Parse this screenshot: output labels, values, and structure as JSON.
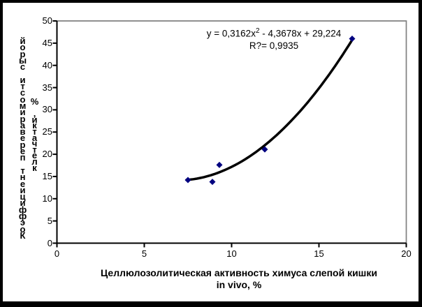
{
  "window": {
    "background": "#ffffff",
    "frame_color": "#000000"
  },
  "chart_data": {
    "type": "scatter",
    "title": "",
    "points": [
      {
        "x": 7.5,
        "y": 14.2
      },
      {
        "x": 8.9,
        "y": 13.8
      },
      {
        "x": 9.3,
        "y": 17.6
      },
      {
        "x": 11.9,
        "y": 21.1
      },
      {
        "x": 16.9,
        "y": 46.0
      }
    ],
    "trendline": {
      "kind": "polynomial",
      "degree": 2,
      "coeffs": {
        "a": 0.3162,
        "b": -4.3678,
        "c": 29.224
      },
      "x_start": 7.42,
      "x_end": 16.93,
      "color": "#000000",
      "width": 3.5
    },
    "equation": {
      "prefix": "y = 0,3162x",
      "superscript": "2",
      "suffix": " - 4,3678x + 29,224"
    },
    "r_squared": "R?= 0,9935",
    "x_axis": {
      "label_line1": "Целлюлозолитическая активность химуса слепой кишки",
      "label_line2": "in vivo, %",
      "min": 0,
      "max": 20,
      "ticks": [
        0,
        5,
        10,
        15,
        20
      ]
    },
    "y_axis": {
      "label_line1": "Коэффициент переваримости сырой",
      "label_line2": "клетчатки, %",
      "min": 0,
      "max": 50,
      "ticks": [
        0,
        5,
        10,
        15,
        20,
        25,
        30,
        35,
        40,
        45,
        50
      ]
    },
    "marker": {
      "shape": "diamond",
      "color": "#000080",
      "size": 9
    },
    "axis_color": "#000000",
    "plot_border_color": "#808080",
    "grid": "off",
    "legend": "none"
  }
}
